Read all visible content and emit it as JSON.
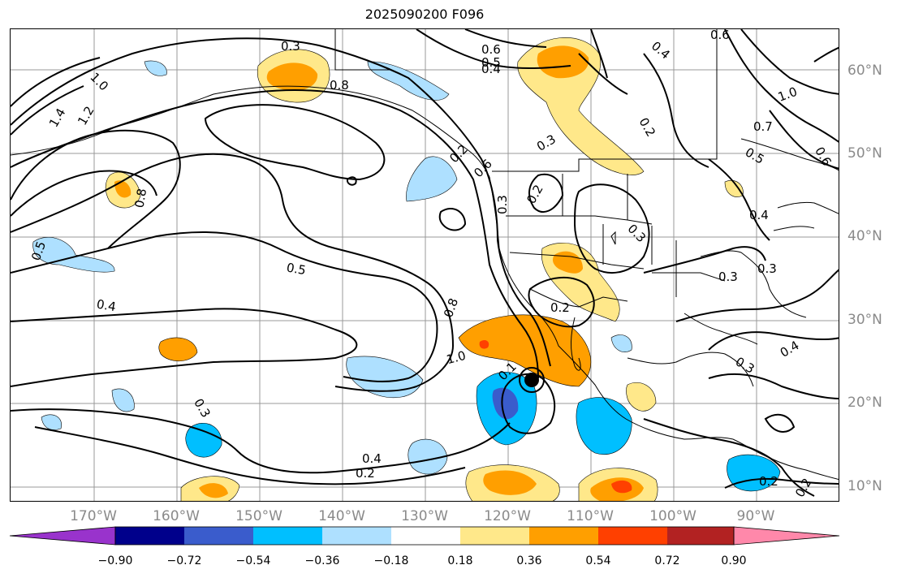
{
  "title": "2025090200 F096",
  "map": {
    "lon_range": [
      -180,
      -80
    ],
    "lat_range": [
      8,
      65
    ],
    "lon_labels": [
      "170°W",
      "160°W",
      "150°W",
      "140°W",
      "130°W",
      "120°W",
      "110°W",
      "100°W",
      "90°W"
    ],
    "lat_labels": [
      "60°N",
      "50°N",
      "40°N",
      "30°N",
      "20°N",
      "10°N"
    ],
    "contour_labels": [
      "0.3",
      "0.6",
      "0.5",
      "0.4",
      "0.8",
      "1.0",
      "1.2",
      "1.4",
      "0.4",
      "0.2",
      "0.3",
      "0.2",
      "0.3",
      "0.6",
      "1.0",
      "0.7",
      "0.5",
      "0.6",
      "0.8",
      "0.5",
      "0.5",
      "0.4",
      "0.3",
      "0.3",
      "0.3",
      "0.8",
      "0.2",
      "1.0",
      "0.4",
      "0.3",
      "0.3",
      "0.4",
      "0.2",
      "0.4",
      "0.2",
      "0.1",
      "0.2",
      "0.6",
      "0.2"
    ],
    "colors": {
      "coastline": "#000000",
      "grid": "#999999",
      "contour": "#000000"
    }
  },
  "colorbar": {
    "tick_labels": [
      "−0.90",
      "−0.72",
      "−0.54",
      "−0.36",
      "−0.18",
      "0.18",
      "0.36",
      "0.54",
      "0.72",
      "0.90"
    ],
    "colors": [
      "#9933cc",
      "#00008b",
      "#3a5ccc",
      "#00bfff",
      "#aee0ff",
      "#ffffff",
      "#ffe88a",
      "#ff9f00",
      "#ff4000",
      "#b22222",
      "#ff88aa"
    ]
  }
}
